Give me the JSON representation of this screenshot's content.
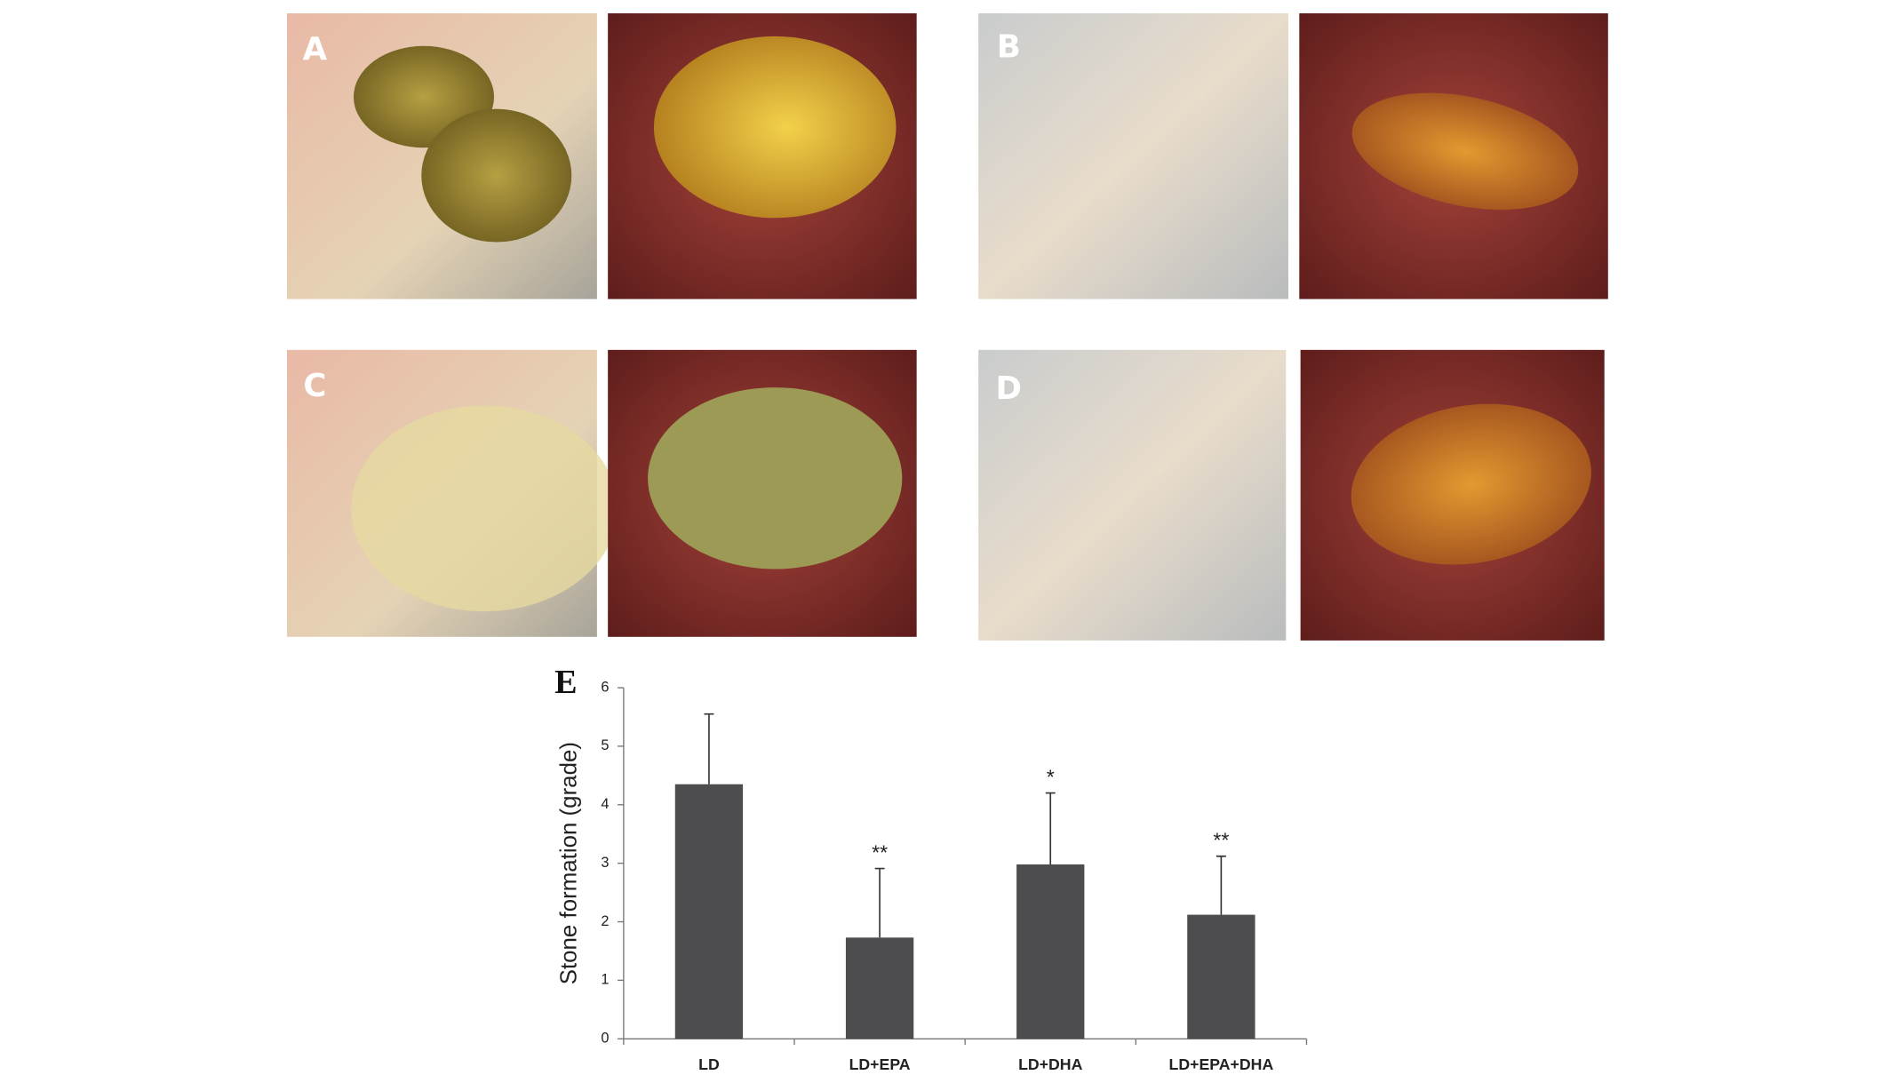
{
  "panels": [
    {
      "label": "A"
    },
    {
      "label": "B"
    },
    {
      "label": "C"
    },
    {
      "label": "D"
    }
  ],
  "chart_data": {
    "type": "bar",
    "label": "E",
    "y_label": "Stone formation (grade)",
    "categories": [
      "LD",
      "LD+EPA",
      "LD+DHA",
      "LD+EPA+DHA"
    ],
    "values": [
      4.35,
      1.73,
      2.98,
      2.12
    ],
    "errors": [
      1.2,
      1.18,
      1.22,
      1.0
    ],
    "significance": [
      null,
      "**",
      "*",
      "**"
    ],
    "color": "#4d4d50",
    "ylim": [
      0,
      6
    ],
    "yticks": [
      0,
      1,
      2,
      3,
      4,
      5,
      6
    ]
  }
}
